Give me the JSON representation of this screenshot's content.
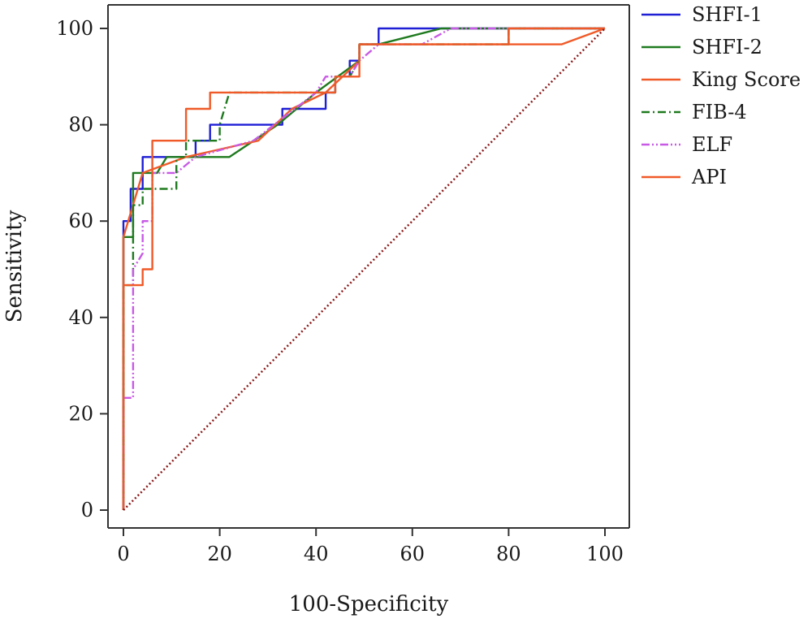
{
  "chart_data": {
    "type": "line",
    "title": "",
    "xlabel": "100-Specificity",
    "ylabel": "Sensitivity",
    "xlim": [
      0,
      100
    ],
    "ylim": [
      0,
      100
    ],
    "xticks": [
      0,
      20,
      40,
      60,
      80,
      100
    ],
    "yticks": [
      0,
      20,
      40,
      60,
      80,
      100
    ],
    "grid": false,
    "legend_position": "top-right",
    "series": [
      {
        "name": "SHFI-1",
        "color": "#1f1fd6",
        "dash": "solid",
        "points": [
          [
            0,
            0
          ],
          [
            0,
            57
          ],
          [
            0,
            60
          ],
          [
            1.5,
            60
          ],
          [
            1.5,
            66.7
          ],
          [
            4,
            66.7
          ],
          [
            4,
            73.3
          ],
          [
            11,
            73.3
          ],
          [
            15,
            73.3
          ],
          [
            15,
            76.7
          ],
          [
            18,
            76.7
          ],
          [
            18,
            80
          ],
          [
            33,
            80
          ],
          [
            33,
            83.3
          ],
          [
            42,
            83.3
          ],
          [
            42,
            86.7
          ],
          [
            44,
            86.7
          ],
          [
            44,
            90
          ],
          [
            47,
            90
          ],
          [
            47,
            93.3
          ],
          [
            49,
            93.3
          ],
          [
            49,
            96.7
          ],
          [
            53,
            96.7
          ],
          [
            53,
            100
          ],
          [
            100,
            100
          ]
        ]
      },
      {
        "name": "SHFI-2",
        "color": "#1f7a1f",
        "dash": "solid",
        "points": [
          [
            0,
            0
          ],
          [
            0,
            56.7
          ],
          [
            2,
            56.7
          ],
          [
            2,
            70
          ],
          [
            4,
            70
          ],
          [
            7,
            70
          ],
          [
            9,
            73.3
          ],
          [
            22,
            73.3
          ],
          [
            32,
            80
          ],
          [
            40,
            86.7
          ],
          [
            49,
            93.3
          ],
          [
            49,
            96.7
          ],
          [
            53,
            96.7
          ],
          [
            66,
            100
          ],
          [
            80,
            100
          ],
          [
            80,
            96.7
          ],
          [
            80,
            100
          ],
          [
            100,
            100
          ]
        ]
      },
      {
        "name": "King Score",
        "color": "#f05a28",
        "dash": "solid",
        "points": [
          [
            0,
            0
          ],
          [
            0,
            56.7
          ],
          [
            4,
            70
          ],
          [
            13,
            73.3
          ],
          [
            28,
            76.7
          ],
          [
            35,
            83.3
          ],
          [
            42,
            86.7
          ],
          [
            49,
            93.3
          ],
          [
            49,
            96.7
          ],
          [
            66,
            96.7
          ],
          [
            91,
            96.7
          ],
          [
            100,
            100
          ]
        ]
      },
      {
        "name": "FIB-4",
        "color": "#1f7a1f",
        "dash": "dashdot",
        "points": [
          [
            0,
            0
          ],
          [
            0,
            46.7
          ],
          [
            2,
            46.7
          ],
          [
            2,
            63.3
          ],
          [
            4,
            63.3
          ],
          [
            4,
            66.7
          ],
          [
            11,
            66.7
          ],
          [
            11,
            73.3
          ],
          [
            13,
            73.3
          ],
          [
            13,
            76.7
          ],
          [
            20,
            76.7
          ],
          [
            20,
            80
          ],
          [
            22,
            86.7
          ],
          [
            44,
            86.7
          ],
          [
            44,
            90
          ],
          [
            47,
            90
          ],
          [
            49,
            93.3
          ],
          [
            49,
            96.7
          ],
          [
            80,
            96.7
          ],
          [
            80,
            100
          ],
          [
            100,
            100
          ]
        ]
      },
      {
        "name": "ELF",
        "color": "#c85ae6",
        "dash": "dashdotdot",
        "points": [
          [
            0,
            0
          ],
          [
            0,
            23.3
          ],
          [
            2,
            23.3
          ],
          [
            2,
            50
          ],
          [
            4,
            53.3
          ],
          [
            4,
            60
          ],
          [
            6,
            60
          ],
          [
            6,
            70
          ],
          [
            11,
            70
          ],
          [
            15,
            73.3
          ],
          [
            27,
            76.7
          ],
          [
            40,
            86.7
          ],
          [
            42,
            90
          ],
          [
            47,
            90
          ],
          [
            49,
            93.3
          ],
          [
            53,
            96.7
          ],
          [
            62,
            96.7
          ],
          [
            68,
            100
          ],
          [
            100,
            100
          ]
        ]
      },
      {
        "name": "API",
        "color": "#f05a28",
        "dash": "solid",
        "points": [
          [
            0,
            0
          ],
          [
            0,
            46.7
          ],
          [
            4,
            46.7
          ],
          [
            4,
            50
          ],
          [
            6,
            50
          ],
          [
            6,
            76.7
          ],
          [
            13,
            76.7
          ],
          [
            13,
            83.3
          ],
          [
            18,
            83.3
          ],
          [
            18,
            86.7
          ],
          [
            44,
            86.7
          ],
          [
            44,
            90
          ],
          [
            49,
            90
          ],
          [
            49,
            96.7
          ],
          [
            80,
            96.7
          ],
          [
            80,
            100
          ],
          [
            100,
            100
          ]
        ]
      },
      {
        "name": "",
        "color": "#8b1a1a",
        "dash": "dotted",
        "points": [
          [
            0,
            0
          ],
          [
            100,
            100
          ]
        ]
      }
    ]
  }
}
